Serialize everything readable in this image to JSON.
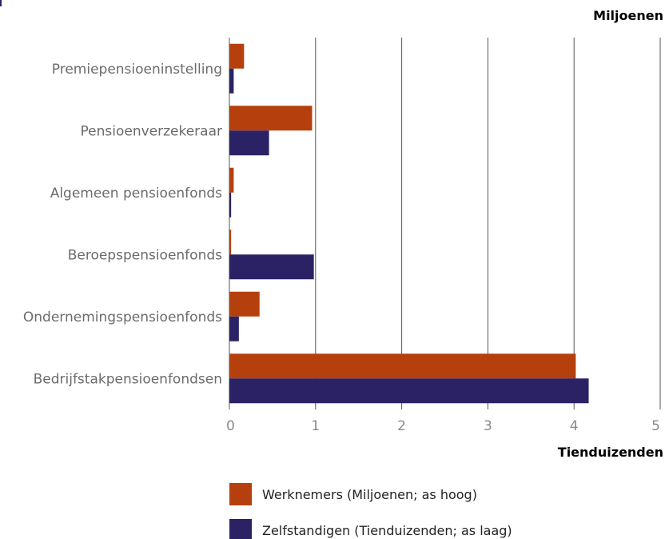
{
  "chart_data": {
    "type": "bar",
    "orientation": "horizontal",
    "categories": [
      "Premiepensioeninstelling",
      "Pensioenverzekeraar",
      "Algemeen pensioenfonds",
      "Beroepspensioenfonds",
      "Ondernemingspensioenfonds",
      "Bedrijfstakpensioenfondsen"
    ],
    "series": [
      {
        "name": "Werknemers (Miljoenen; as hoog)",
        "color": "#b5400e",
        "values": [
          0.17,
          0.96,
          0.05,
          0.02,
          0.35,
          4.02
        ]
      },
      {
        "name": "Zelfstandigen (Tienduizenden; as laag)",
        "color": "#2b2266",
        "values": [
          0.05,
          0.46,
          0.02,
          0.98,
          0.11,
          4.17
        ]
      }
    ],
    "xlim": [
      0,
      5
    ],
    "xticks": [
      "0",
      "1",
      "2",
      "3",
      "4",
      "5"
    ],
    "top_axis_label": "Miljoenen",
    "bottom_axis_label": "Tienduizenden",
    "grid": true,
    "legend_position": "bottom"
  }
}
